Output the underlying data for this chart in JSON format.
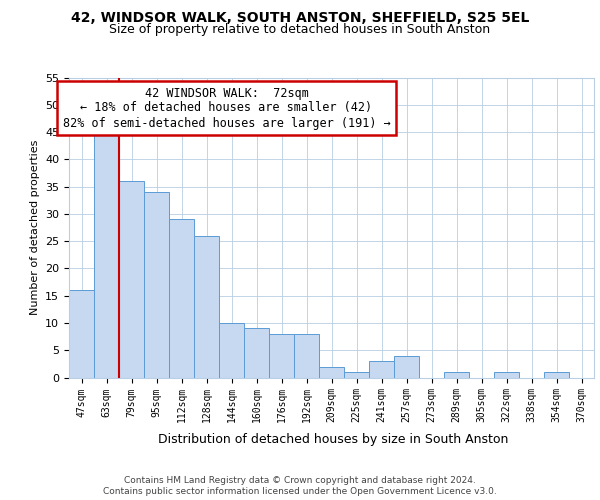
{
  "title1": "42, WINDSOR WALK, SOUTH ANSTON, SHEFFIELD, S25 5EL",
  "title2": "Size of property relative to detached houses in South Anston",
  "xlabel": "Distribution of detached houses by size in South Anston",
  "ylabel": "Number of detached properties",
  "footnote1": "Contains HM Land Registry data © Crown copyright and database right 2024.",
  "footnote2": "Contains public sector information licensed under the Open Government Licence v3.0.",
  "annotation_line1": "42 WINDSOR WALK:  72sqm",
  "annotation_line2": "← 18% of detached houses are smaller (42)",
  "annotation_line3": "82% of semi-detached houses are larger (191) →",
  "bar_labels": [
    "47sqm",
    "63sqm",
    "79sqm",
    "95sqm",
    "112sqm",
    "128sqm",
    "144sqm",
    "160sqm",
    "176sqm",
    "192sqm",
    "209sqm",
    "225sqm",
    "241sqm",
    "257sqm",
    "273sqm",
    "289sqm",
    "305sqm",
    "322sqm",
    "338sqm",
    "354sqm",
    "370sqm"
  ],
  "bar_values": [
    16,
    45,
    36,
    34,
    29,
    26,
    10,
    9,
    8,
    8,
    2,
    1,
    3,
    4,
    0,
    1,
    0,
    1,
    0,
    1,
    0
  ],
  "bar_color": "#c6d9f0",
  "bar_edge_color": "#5b9bd5",
  "vline_color": "#cc0000",
  "annotation_box_color": "#cc0000",
  "background_color": "#ffffff",
  "grid_color": "#b8cfe4",
  "ylim": [
    0,
    55
  ],
  "yticks": [
    0,
    5,
    10,
    15,
    20,
    25,
    30,
    35,
    40,
    45,
    50,
    55
  ]
}
